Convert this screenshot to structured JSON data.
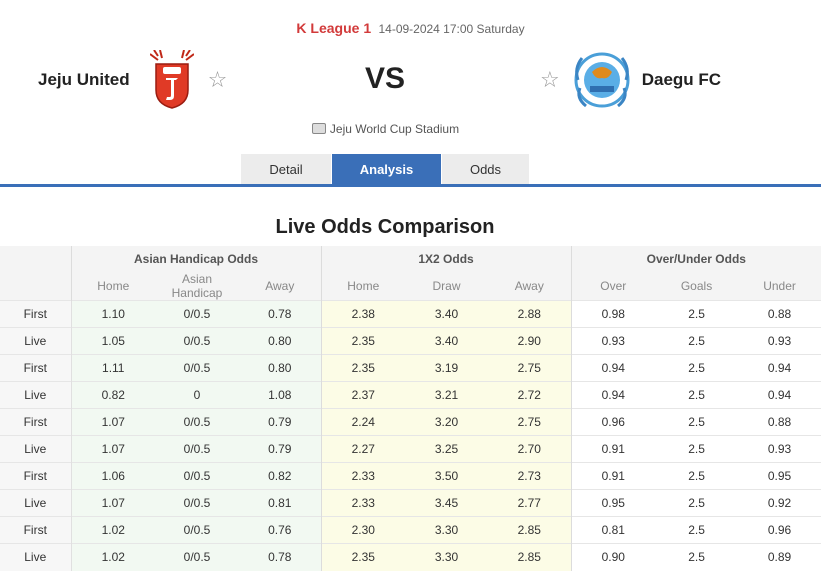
{
  "match": {
    "league": "K League 1",
    "datetime": "14-09-2024 17:00 Saturday",
    "home": "Jeju United",
    "away": "Daegu FC",
    "vs": "VS",
    "stadium": "Jeju World Cup Stadium"
  },
  "colors": {
    "accent": "#3a6fb8",
    "league": "#d23a3a",
    "jeju": "#e03a26",
    "daegu": "#4a9fd8"
  },
  "tabs": [
    {
      "label": "Detail",
      "active": false
    },
    {
      "label": "Analysis",
      "active": true
    },
    {
      "label": "Odds",
      "active": false
    }
  ],
  "section_title": "Live Odds Comparison",
  "table": {
    "groups": [
      "Asian Handicap Odds",
      "1X2 Odds",
      "Over/Under Odds"
    ],
    "subheaders": [
      "Home",
      "Asian Handicap",
      "Away",
      "Home",
      "Draw",
      "Away",
      "Over",
      "Goals",
      "Under"
    ],
    "rows": [
      {
        "label": "First",
        "values": [
          "1.10",
          "0/0.5",
          "0.78",
          "2.38",
          "3.40",
          "2.88",
          "0.98",
          "2.5",
          "0.88"
        ]
      },
      {
        "label": "Live",
        "values": [
          "1.05",
          "0/0.5",
          "0.80",
          "2.35",
          "3.40",
          "2.90",
          "0.93",
          "2.5",
          "0.93"
        ]
      },
      {
        "label": "First",
        "values": [
          "1.11",
          "0/0.5",
          "0.80",
          "2.35",
          "3.19",
          "2.75",
          "0.94",
          "2.5",
          "0.94"
        ]
      },
      {
        "label": "Live",
        "values": [
          "0.82",
          "0",
          "1.08",
          "2.37",
          "3.21",
          "2.72",
          "0.94",
          "2.5",
          "0.94"
        ]
      },
      {
        "label": "First",
        "values": [
          "1.07",
          "0/0.5",
          "0.79",
          "2.24",
          "3.20",
          "2.75",
          "0.96",
          "2.5",
          "0.88"
        ]
      },
      {
        "label": "Live",
        "values": [
          "1.07",
          "0/0.5",
          "0.79",
          "2.27",
          "3.25",
          "2.70",
          "0.91",
          "2.5",
          "0.93"
        ]
      },
      {
        "label": "First",
        "values": [
          "1.06",
          "0/0.5",
          "0.82",
          "2.33",
          "3.50",
          "2.73",
          "0.91",
          "2.5",
          "0.95"
        ]
      },
      {
        "label": "Live",
        "values": [
          "1.07",
          "0/0.5",
          "0.81",
          "2.33",
          "3.45",
          "2.77",
          "0.95",
          "2.5",
          "0.92"
        ]
      },
      {
        "label": "First",
        "values": [
          "1.02",
          "0/0.5",
          "0.76",
          "2.30",
          "3.30",
          "2.85",
          "0.81",
          "2.5",
          "0.96"
        ]
      },
      {
        "label": "Live",
        "values": [
          "1.02",
          "0/0.5",
          "0.78",
          "2.35",
          "3.30",
          "2.85",
          "0.90",
          "2.5",
          "0.89"
        ]
      }
    ]
  }
}
